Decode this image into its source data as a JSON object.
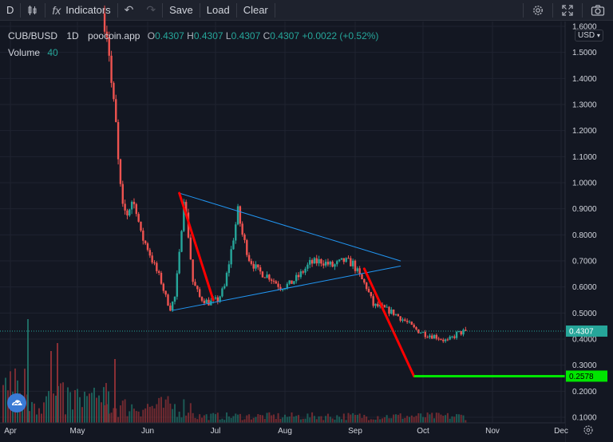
{
  "toolbar": {
    "symbol_letter": "D",
    "indicators_label": "Indicators",
    "save_label": "Save",
    "load_label": "Load",
    "clear_label": "Clear"
  },
  "legend": {
    "symbol": "CUB/BUSD",
    "interval": "1D",
    "source": "poocoin.app",
    "o_label": "O",
    "o_value": "0.4307",
    "h_label": "H",
    "h_value": "0.4307",
    "l_label": "L",
    "l_value": "0.4307",
    "c_label": "C",
    "c_value": "0.4307",
    "change": "+0.0022 (+0.52%)",
    "volume_label": "Volume",
    "volume_value": "40"
  },
  "currency": "USD",
  "colors": {
    "up": "#26a69a",
    "down": "#ef5350",
    "trendline": "#2196f3",
    "red_arrow": "#ff0000",
    "target_line": "#00e600",
    "price_tag": "#26a69a"
  },
  "chart_data": {
    "type": "candlestick",
    "x_ticks": [
      "Apr",
      "May",
      "Jun",
      "Jul",
      "Aug",
      "Sep",
      "Oct",
      "Nov",
      "Dec"
    ],
    "y_ticks": [
      "1.6000",
      "1.5000",
      "1.4000",
      "1.3000",
      "1.2000",
      "1.1000",
      "1.0000",
      "0.9000",
      "0.8000",
      "0.7000",
      "0.6000",
      "0.5000",
      "0.4000",
      "0.3000",
      "0.2000",
      "0.1000"
    ],
    "ylim": [
      0.1,
      1.6
    ],
    "current_price": "0.4307",
    "target_price": "0.2578",
    "close_path": [
      [
        "2021-05-13",
        1.62
      ],
      [
        "2021-05-14",
        1.58
      ],
      [
        "2021-05-15",
        1.5
      ],
      [
        "2021-05-16",
        1.38
      ],
      [
        "2021-05-17",
        1.3
      ],
      [
        "2021-05-18",
        1.22
      ],
      [
        "2021-05-19",
        1.08
      ],
      [
        "2021-05-20",
        0.98
      ],
      [
        "2021-05-21",
        0.9
      ],
      [
        "2021-05-23",
        0.88
      ],
      [
        "2021-05-25",
        0.93
      ],
      [
        "2021-05-27",
        0.9
      ],
      [
        "2021-05-29",
        0.8
      ],
      [
        "2021-06-01",
        0.75
      ],
      [
        "2021-06-04",
        0.68
      ],
      [
        "2021-06-07",
        0.62
      ],
      [
        "2021-06-09",
        0.56
      ],
      [
        "2021-06-11",
        0.52
      ],
      [
        "2021-06-13",
        0.56
      ],
      [
        "2021-06-15",
        0.72
      ],
      [
        "2021-06-17",
        0.95
      ],
      [
        "2021-06-19",
        0.8
      ],
      [
        "2021-06-21",
        0.62
      ],
      [
        "2021-06-24",
        0.56
      ],
      [
        "2021-06-28",
        0.54
      ],
      [
        "2021-07-02",
        0.55
      ],
      [
        "2021-07-05",
        0.6
      ],
      [
        "2021-07-08",
        0.74
      ],
      [
        "2021-07-11",
        0.89
      ],
      [
        "2021-07-13",
        0.8
      ],
      [
        "2021-07-16",
        0.71
      ],
      [
        "2021-07-20",
        0.66
      ],
      [
        "2021-07-25",
        0.64
      ],
      [
        "2021-07-30",
        0.6
      ],
      [
        "2021-08-03",
        0.61
      ],
      [
        "2021-08-07",
        0.64
      ],
      [
        "2021-08-12",
        0.69
      ],
      [
        "2021-08-17",
        0.7
      ],
      [
        "2021-08-22",
        0.68
      ],
      [
        "2021-08-27",
        0.7
      ],
      [
        "2021-08-31",
        0.69
      ],
      [
        "2021-09-03",
        0.64
      ],
      [
        "2021-09-06",
        0.6
      ],
      [
        "2021-09-09",
        0.53
      ],
      [
        "2021-09-13",
        0.52
      ],
      [
        "2021-09-18",
        0.5
      ],
      [
        "2021-09-23",
        0.47
      ],
      [
        "2021-09-27",
        0.44
      ],
      [
        "2021-10-02",
        0.42
      ],
      [
        "2021-10-07",
        0.41
      ],
      [
        "2021-10-12",
        0.39
      ],
      [
        "2021-10-16",
        0.42
      ],
      [
        "2021-10-20",
        0.4307
      ]
    ],
    "drawings": {
      "triangle_upper": [
        [
          "2021-06-15",
          0.96
        ],
        [
          "2021-09-21",
          0.7
        ]
      ],
      "triangle_lower": [
        [
          "2021-06-12",
          0.51
        ],
        [
          "2021-09-21",
          0.68
        ]
      ],
      "red_drop_1": [
        [
          "2021-06-15",
          0.96
        ],
        [
          "2021-06-30",
          0.55
        ]
      ],
      "red_drop_2": [
        [
          "2021-09-05",
          0.67
        ],
        [
          "2021-09-27",
          0.2578
        ]
      ],
      "target_level": [
        [
          "2021-09-27",
          0.2578
        ],
        [
          "2021-12-31",
          0.2578
        ]
      ]
    }
  }
}
